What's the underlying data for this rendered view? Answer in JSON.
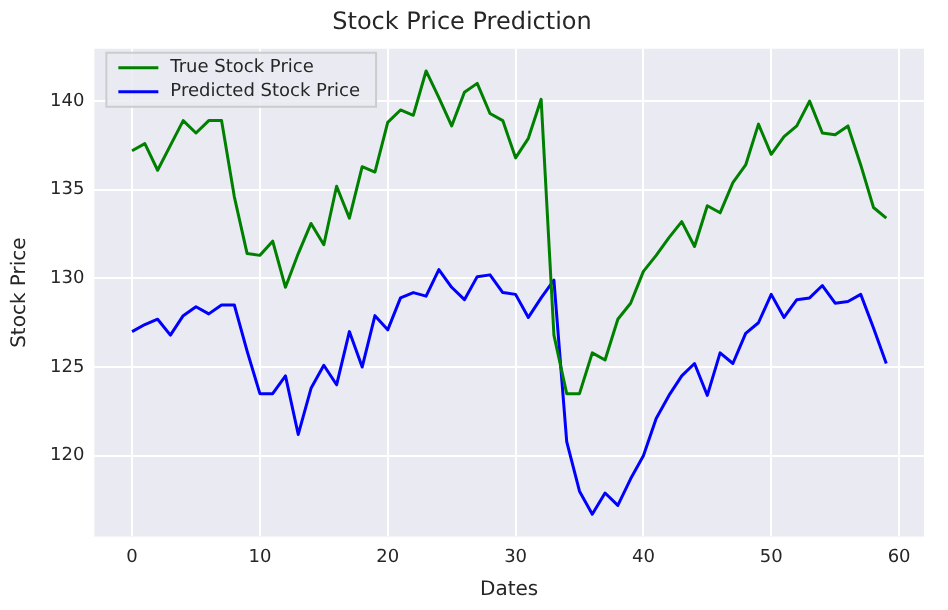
{
  "chart_data": {
    "type": "line",
    "title": "Stock Price Prediction",
    "xlabel": "Dates",
    "ylabel": "Stock Price",
    "x": [
      0,
      1,
      2,
      3,
      4,
      5,
      6,
      7,
      8,
      9,
      10,
      11,
      12,
      13,
      14,
      15,
      16,
      17,
      18,
      19,
      20,
      21,
      22,
      23,
      24,
      25,
      26,
      27,
      28,
      29,
      30,
      31,
      32,
      33,
      34,
      35,
      36,
      37,
      38,
      39,
      40,
      41,
      42,
      43,
      44,
      45,
      46,
      47,
      48,
      49,
      50,
      51,
      52,
      53,
      54,
      55,
      56,
      57,
      58,
      59
    ],
    "series": [
      {
        "name": "True Stock Price",
        "color": "#008000",
        "values": [
          137.2,
          137.6,
          136.1,
          137.5,
          138.9,
          138.2,
          138.9,
          138.9,
          134.6,
          131.4,
          131.3,
          132.1,
          129.5,
          131.4,
          133.1,
          131.9,
          135.2,
          133.4,
          136.3,
          136.0,
          138.8,
          139.5,
          139.2,
          141.7,
          140.2,
          138.6,
          140.5,
          141.0,
          139.3,
          138.9,
          136.8,
          137.9,
          140.1,
          126.8,
          123.5,
          123.5,
          125.8,
          125.4,
          127.7,
          128.6,
          130.4,
          131.3,
          132.3,
          133.2,
          131.8,
          134.1,
          133.7,
          135.4,
          136.4,
          138.7,
          137.0,
          138.0,
          138.6,
          140.0,
          138.2,
          138.1,
          138.6,
          136.4,
          134.0,
          133.4
        ]
      },
      {
        "name": "Predicted Stock Price",
        "color": "#0000ff",
        "values": [
          127.0,
          127.4,
          127.7,
          126.8,
          127.9,
          128.4,
          128.0,
          128.5,
          128.5,
          125.9,
          123.5,
          123.5,
          124.5,
          121.2,
          123.8,
          125.1,
          124.0,
          127.0,
          125.0,
          127.9,
          127.1,
          128.9,
          129.2,
          129.0,
          130.5,
          129.5,
          128.8,
          130.1,
          130.2,
          129.2,
          129.1,
          127.8,
          128.9,
          129.9,
          120.8,
          118.0,
          116.7,
          117.9,
          117.2,
          118.7,
          120.0,
          122.1,
          123.4,
          124.5,
          125.2,
          123.4,
          125.8,
          125.2,
          126.9,
          127.5,
          129.1,
          127.8,
          128.8,
          128.9,
          129.6,
          128.6,
          128.7,
          129.1,
          127.2,
          125.2
        ]
      }
    ],
    "xlim": [
      -2.95,
      61.95
    ],
    "xticks": [
      0,
      10,
      20,
      30,
      40,
      50,
      60
    ],
    "ylim": [
      115.45,
      142.95
    ],
    "yticks": [
      120,
      125,
      130,
      135,
      140
    ],
    "grid": true,
    "legend": "top left",
    "line_style": "solid",
    "marker": "none"
  }
}
